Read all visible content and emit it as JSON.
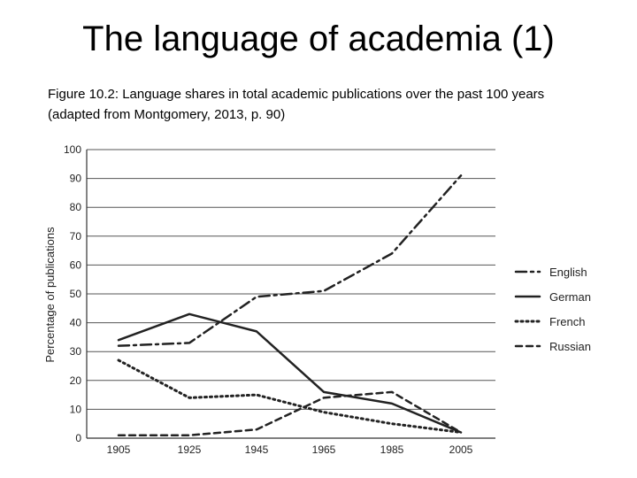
{
  "slide": {
    "title": "The language of academia (1)",
    "caption_line1": "Figure 10.2: Language shares in total academic publications over the past 100 years",
    "caption_line2": "(adapted from Montgomery, 2013, p. 90)"
  },
  "chart_data": {
    "type": "line",
    "title": "",
    "xlabel": "",
    "ylabel": "Percentage of publications",
    "x": [
      "1905",
      "1925",
      "1945",
      "1965",
      "1985",
      "2005"
    ],
    "ylim": [
      0,
      100
    ],
    "yticks": [
      "0",
      "10",
      "20",
      "30",
      "40",
      "50",
      "60",
      "70",
      "80",
      "90",
      "100"
    ],
    "grid": true,
    "legend_position": "right",
    "series": [
      {
        "name": "English",
        "values": [
          32,
          33,
          49,
          51,
          64,
          91
        ],
        "dash": "dash-dot"
      },
      {
        "name": "German",
        "values": [
          34,
          43,
          37,
          16,
          12,
          2
        ],
        "dash": "solid"
      },
      {
        "name": "French",
        "values": [
          27,
          14,
          15,
          9,
          5,
          2
        ],
        "dash": "dotted"
      },
      {
        "name": "Russian",
        "values": [
          1,
          1,
          3,
          14,
          16,
          2
        ],
        "dash": "dashed"
      }
    ]
  }
}
